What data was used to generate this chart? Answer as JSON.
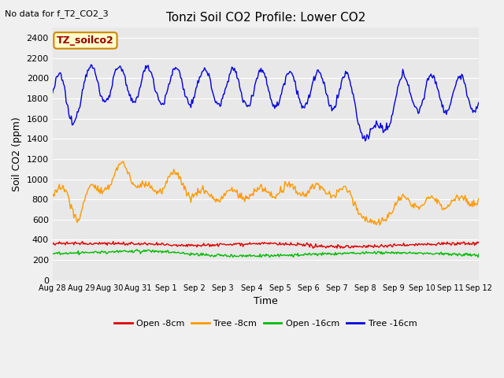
{
  "title": "Tonzi Soil CO2 Profile: Lower CO2",
  "subtitle": "No data for f_T2_CO2_3",
  "xlabel": "Time",
  "ylabel": "Soil CO2 (ppm)",
  "legend_label": "TZ_soilco2",
  "fig_bg_color": "#f0f0f0",
  "plot_bg_color": "#e8e8e8",
  "grid_color": "#ffffff",
  "ylim": [
    0,
    2500
  ],
  "yticks": [
    0,
    200,
    400,
    600,
    800,
    1000,
    1200,
    1400,
    1600,
    1800,
    2000,
    2200,
    2400
  ],
  "xtick_labels": [
    "Aug 28",
    "Aug 29",
    "Aug 30",
    "Aug 31",
    "Sep 1",
    "Sep 2",
    "Sep 3",
    "Sep 4",
    "Sep 5",
    "Sep 6",
    "Sep 7",
    "Sep 8",
    "Sep 9",
    "Sep 10",
    "Sep 11",
    "Sep 12"
  ],
  "series": {
    "open_8cm": {
      "color": "#dd0000",
      "label": "Open -8cm",
      "linewidth": 1.0
    },
    "tree_8cm": {
      "color": "#ff9900",
      "label": "Tree -8cm",
      "linewidth": 1.0
    },
    "open_16cm": {
      "color": "#00bb00",
      "label": "Open -16cm",
      "linewidth": 1.0
    },
    "tree_16cm": {
      "color": "#0000dd",
      "label": "Tree -16cm",
      "linewidth": 1.0
    }
  }
}
